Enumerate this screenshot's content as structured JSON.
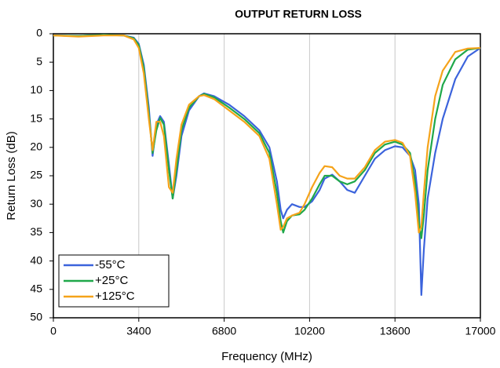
{
  "chart_data": {
    "type": "line",
    "title": "OUTPUT RETURN LOSS",
    "xlabel": "Frequency (MHz)",
    "ylabel": "Return Loss (dB)",
    "x": [
      0,
      1000,
      2000,
      2800,
      3200,
      3400,
      3600,
      3800,
      3950,
      4100,
      4250,
      4400,
      4600,
      4750,
      4900,
      5100,
      5400,
      5800,
      6000,
      6400,
      7000,
      7600,
      8200,
      8600,
      8900,
      9050,
      9150,
      9300,
      9500,
      9800,
      10000,
      10300,
      10600,
      10800,
      11100,
      11400,
      11700,
      12000,
      12400,
      12800,
      13200,
      13600,
      13900,
      14200,
      14400,
      14550,
      14650,
      14750,
      14900,
      15200,
      15500,
      16000,
      16500,
      17000
    ],
    "series": [
      {
        "name": "-55°C",
        "color": "#3b63dc",
        "values": [
          0.3,
          0.4,
          0.2,
          0.3,
          0.7,
          1.8,
          5.5,
          13,
          21.5,
          16,
          14.5,
          15.5,
          23,
          29,
          25,
          18,
          13.5,
          11,
          10.5,
          11,
          12.5,
          14.5,
          17,
          20,
          26,
          31,
          32.5,
          31,
          30,
          30.5,
          30.5,
          29.5,
          27.5,
          25.5,
          24.8,
          26,
          27.5,
          28,
          25,
          22,
          20.5,
          19.8,
          20,
          21.5,
          24,
          30,
          46,
          38,
          29,
          21,
          15,
          8,
          4,
          2.5
        ]
      },
      {
        "name": "+25°C",
        "color": "#1fa84a",
        "values": [
          0.3,
          0.4,
          0.2,
          0.3,
          0.8,
          2,
          6,
          14,
          21,
          17,
          14.8,
          16,
          24,
          29,
          24,
          17,
          13,
          11,
          10.6,
          11.2,
          13,
          15,
          17.5,
          21,
          28,
          33,
          35,
          33,
          32,
          31.8,
          31,
          29,
          26.5,
          25,
          25,
          26,
          26.5,
          26,
          24,
          21,
          19.5,
          19,
          19.5,
          21,
          26,
          33,
          36,
          32,
          24,
          15,
          9,
          4.5,
          2.8,
          2.5
        ]
      },
      {
        "name": "+125°C",
        "color": "#f5a31a",
        "values": [
          0.3,
          0.5,
          0.3,
          0.3,
          1,
          2.5,
          7,
          15,
          20.5,
          15.5,
          15.5,
          18,
          27,
          28,
          22,
          16,
          12.5,
          11,
          10.8,
          11.5,
          13.5,
          15.5,
          18,
          22,
          30,
          34.5,
          34,
          32.5,
          32,
          31.5,
          30,
          27,
          24.5,
          23.3,
          23.5,
          25,
          25.5,
          25.5,
          23.5,
          20.5,
          19,
          18.7,
          19.2,
          21.5,
          28,
          35,
          34,
          28,
          20,
          11,
          6.5,
          3.2,
          2.6,
          2.5
        ]
      }
    ],
    "xlim": [
      0,
      17000
    ],
    "xticks": [
      0,
      3400,
      6800,
      10200,
      13600,
      17000
    ],
    "ylim": [
      0,
      50
    ],
    "yticks": [
      0,
      5,
      10,
      15,
      20,
      25,
      30,
      35,
      40,
      45,
      50
    ],
    "y_inverted": true,
    "grid": "x",
    "legend": "lower left"
  }
}
